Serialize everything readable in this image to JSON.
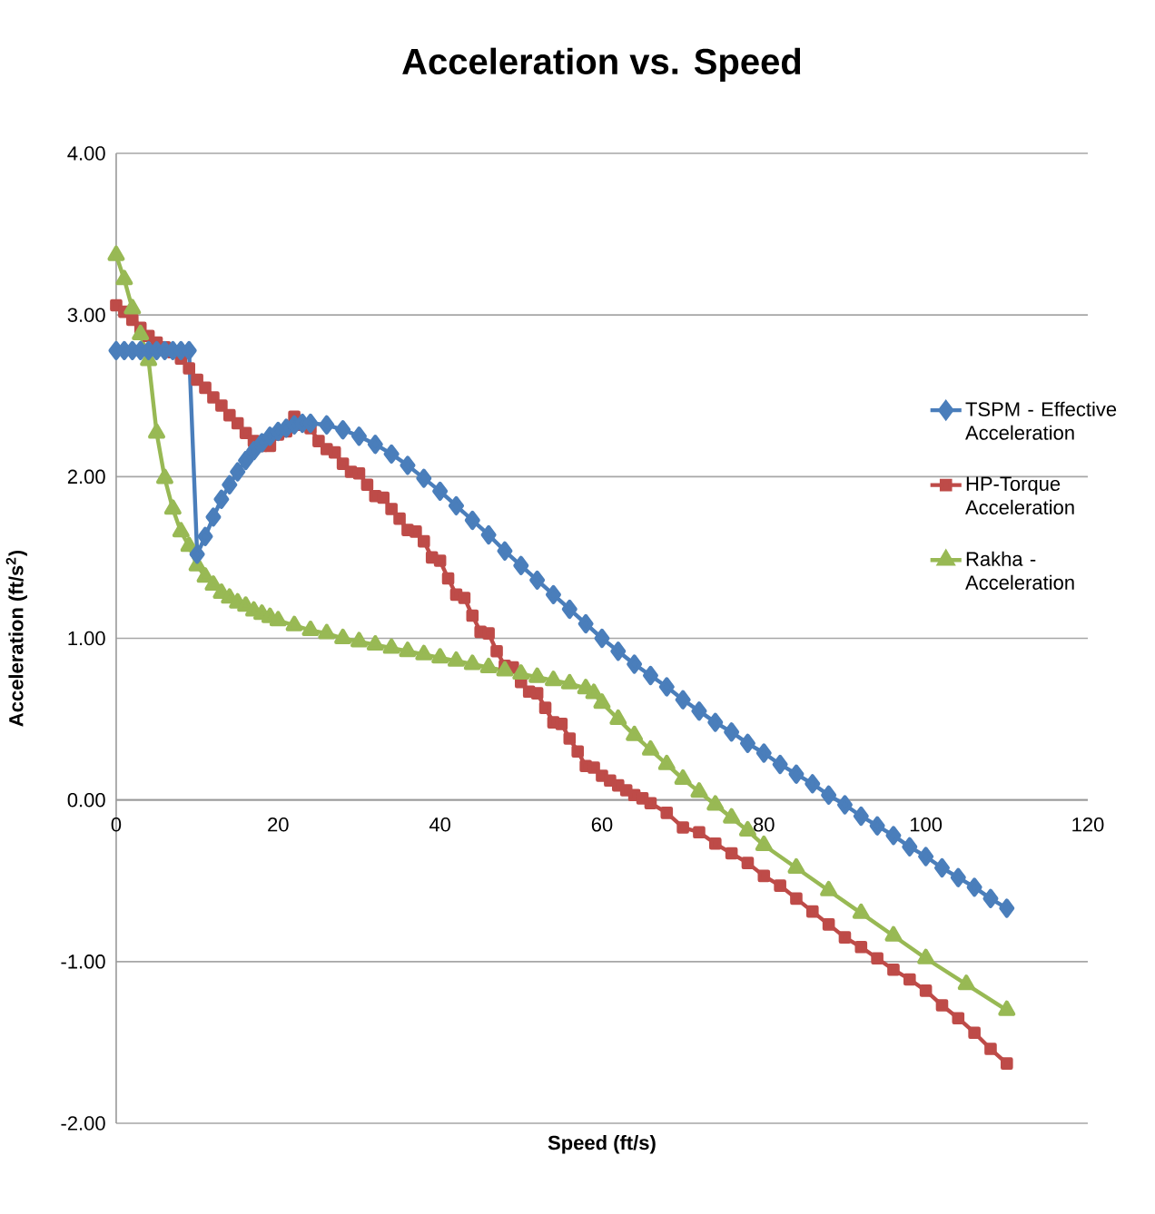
{
  "chart_data": {
    "type": "line",
    "title": "Acceleration vs. Speed",
    "xlabel": "Speed (ft/s)",
    "ylabel": "Acceleration (ft/s$^{2}$)",
    "xlim": [
      0,
      120
    ],
    "xticks": [
      0,
      20,
      40,
      60,
      80,
      100,
      120
    ],
    "ylim": [
      -2,
      4
    ],
    "yticks": [
      {
        "value": -2,
        "label": "-2.00"
      },
      {
        "value": -1,
        "label": "-1.00"
      },
      {
        "value": 0,
        "label": "0.00"
      },
      {
        "value": 1,
        "label": "1.00"
      },
      {
        "value": 2,
        "label": "2.00"
      },
      {
        "value": 3,
        "label": "3.00"
      },
      {
        "value": 4,
        "label": "4.00"
      }
    ],
    "grid": "y",
    "legend": "right",
    "line_style": "solid",
    "series": [
      {
        "name": "TSPM - Effective Acceleration",
        "color": "#4a7ebb",
        "marker": "diamond",
        "x": [
          0,
          1,
          2,
          3,
          4,
          5,
          6,
          7,
          8,
          9,
          10,
          11,
          12,
          13,
          14,
          15,
          16,
          17,
          18,
          19,
          20,
          21,
          22,
          23,
          24,
          26,
          28,
          30,
          32,
          34,
          36,
          38,
          40,
          42,
          44,
          46,
          48,
          50,
          52,
          54,
          56,
          58,
          60,
          62,
          64,
          66,
          68,
          70,
          72,
          74,
          76,
          78,
          80,
          82,
          84,
          86,
          88,
          90,
          92,
          94,
          96,
          98,
          100,
          102,
          104,
          106,
          108,
          110
        ],
        "values": [
          2.78,
          2.78,
          2.78,
          2.78,
          2.78,
          2.78,
          2.78,
          2.78,
          2.78,
          2.78,
          1.52,
          1.63,
          1.75,
          1.86,
          1.95,
          2.03,
          2.1,
          2.16,
          2.21,
          2.25,
          2.28,
          2.3,
          2.32,
          2.33,
          2.33,
          2.32,
          2.29,
          2.25,
          2.2,
          2.14,
          2.07,
          1.99,
          1.91,
          1.82,
          1.73,
          1.64,
          1.54,
          1.45,
          1.36,
          1.27,
          1.18,
          1.09,
          1.0,
          0.92,
          0.84,
          0.77,
          0.7,
          0.62,
          0.55,
          0.48,
          0.42,
          0.35,
          0.29,
          0.22,
          0.16,
          0.1,
          0.03,
          -0.03,
          -0.1,
          -0.16,
          -0.22,
          -0.29,
          -0.35,
          -0.42,
          -0.48,
          -0.54,
          -0.61,
          -0.67
        ]
      },
      {
        "name": "HP-Torque Acceleration",
        "color": "#be4b48",
        "marker": "square",
        "x": [
          0,
          1,
          2,
          3,
          4,
          5,
          6,
          7,
          8,
          9,
          10,
          11,
          12,
          13,
          14,
          15,
          16,
          17,
          18,
          19,
          20,
          21,
          22,
          23,
          24,
          25,
          26,
          27,
          28,
          29,
          30,
          31,
          32,
          33,
          34,
          35,
          36,
          37,
          38,
          39,
          40,
          41,
          42,
          43,
          44,
          45,
          46,
          47,
          48,
          49,
          50,
          51,
          52,
          53,
          54,
          55,
          56,
          57,
          58,
          59,
          60,
          61,
          62,
          63,
          64,
          65,
          66,
          68,
          70,
          72,
          74,
          76,
          78,
          80,
          82,
          84,
          86,
          88,
          90,
          92,
          94,
          96,
          98,
          100,
          102,
          104,
          106,
          108,
          110
        ],
        "values": [
          3.06,
          3.02,
          2.97,
          2.92,
          2.87,
          2.83,
          2.8,
          2.77,
          2.73,
          2.67,
          2.6,
          2.55,
          2.49,
          2.44,
          2.38,
          2.33,
          2.27,
          2.22,
          2.19,
          2.19,
          2.26,
          2.28,
          2.37,
          2.32,
          2.3,
          2.22,
          2.17,
          2.15,
          2.08,
          2.03,
          2.02,
          1.95,
          1.88,
          1.87,
          1.8,
          1.74,
          1.67,
          1.66,
          1.6,
          1.5,
          1.48,
          1.37,
          1.27,
          1.25,
          1.14,
          1.04,
          1.03,
          0.92,
          0.83,
          0.82,
          0.73,
          0.67,
          0.66,
          0.57,
          0.48,
          0.47,
          0.38,
          0.3,
          0.21,
          0.2,
          0.15,
          0.12,
          0.09,
          0.06,
          0.03,
          0.01,
          -0.02,
          -0.08,
          -0.17,
          -0.2,
          -0.27,
          -0.33,
          -0.39,
          -0.47,
          -0.53,
          -0.61,
          -0.69,
          -0.77,
          -0.85,
          -0.91,
          -0.98,
          -1.05,
          -1.11,
          -1.18,
          -1.27,
          -1.35,
          -1.44,
          -1.54,
          -1.63
        ]
      },
      {
        "name": "Rakha - Acceleration",
        "color": "#98b954",
        "marker": "triangle",
        "x": [
          0,
          1,
          2,
          3,
          4,
          5,
          6,
          7,
          8,
          9,
          10,
          11,
          12,
          13,
          14,
          15,
          16,
          17,
          18,
          19,
          20,
          22,
          24,
          26,
          28,
          30,
          32,
          34,
          36,
          38,
          40,
          42,
          44,
          46,
          48,
          50,
          52,
          54,
          56,
          58,
          59,
          60,
          62,
          64,
          66,
          68,
          70,
          72,
          74,
          76,
          78,
          80,
          84,
          88,
          92,
          96,
          100,
          105,
          110
        ],
        "values": [
          3.37,
          3.22,
          3.04,
          2.88,
          2.72,
          2.27,
          1.99,
          1.8,
          1.66,
          1.57,
          1.45,
          1.38,
          1.33,
          1.28,
          1.25,
          1.22,
          1.2,
          1.17,
          1.15,
          1.13,
          1.11,
          1.08,
          1.05,
          1.03,
          1.0,
          0.98,
          0.96,
          0.94,
          0.92,
          0.9,
          0.88,
          0.86,
          0.84,
          0.82,
          0.8,
          0.78,
          0.76,
          0.74,
          0.72,
          0.69,
          0.66,
          0.6,
          0.5,
          0.4,
          0.31,
          0.22,
          0.13,
          0.05,
          -0.03,
          -0.11,
          -0.19,
          -0.28,
          -0.42,
          -0.56,
          -0.7,
          -0.84,
          -0.98,
          -1.14,
          -1.3
        ]
      }
    ]
  }
}
